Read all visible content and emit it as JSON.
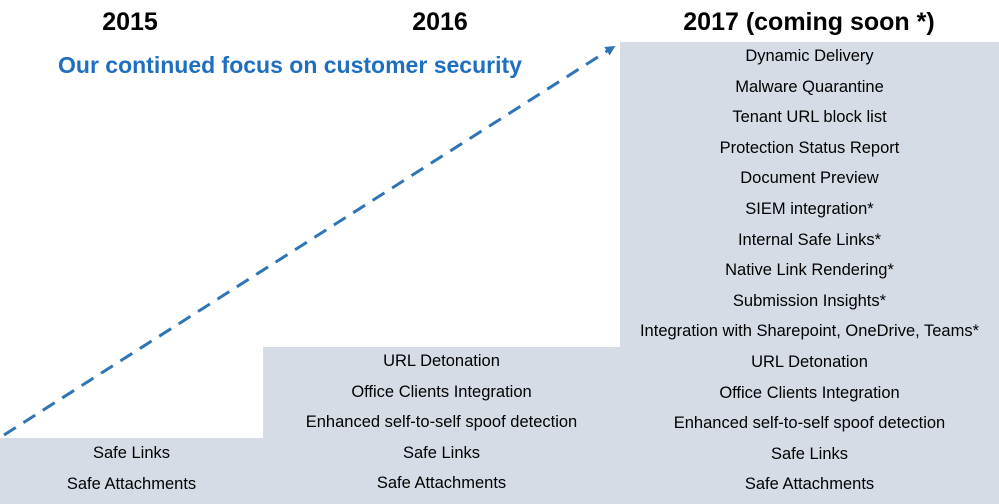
{
  "header": {
    "year_2015": "2015",
    "year_2016": "2016",
    "year_2017": "2017 (coming soon *)"
  },
  "tagline": "Our continued focus on customer security",
  "colors": {
    "step_fill": "#d5dce6",
    "accent": "#1f6fc0",
    "arrow": "#2e75b6"
  },
  "columns": {
    "y2015": {
      "items": [
        "Safe Links",
        "Safe Attachments"
      ]
    },
    "y2016": {
      "items": [
        "URL Detonation",
        "Office Clients Integration",
        "Enhanced self-to-self spoof detection",
        "Safe Links",
        "Safe Attachments"
      ]
    },
    "y2017": {
      "items": [
        "Dynamic Delivery",
        "Malware Quarantine",
        "Tenant URL block list",
        "Protection Status Report",
        "Document Preview",
        "SIEM integration*",
        "Internal Safe Links*",
        "Native Link Rendering*",
        "Submission Insights*",
        "Integration with Sharepoint, OneDrive, Teams*",
        "URL Detonation",
        "Office Clients Integration",
        "Enhanced self-to-self spoof detection",
        "Safe Links",
        "Safe Attachments"
      ]
    }
  }
}
